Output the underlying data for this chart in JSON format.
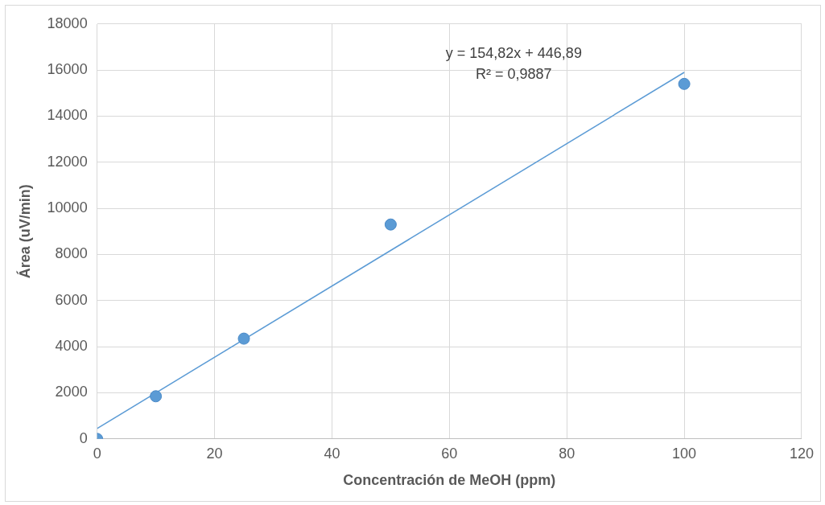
{
  "chart_data": {
    "type": "scatter",
    "xlabel": "Concentración de MeOH (ppm)",
    "ylabel": "Área (uV/min)",
    "x": [
      0,
      10,
      25,
      50,
      100
    ],
    "series": [
      {
        "color": "#5b9bd5",
        "values": [
          0,
          1850,
          4350,
          9300,
          15400
        ],
        "marker": "circle"
      },
      {
        "type": "line",
        "color": "#5b9bd5",
        "x": [
          0,
          100
        ],
        "values": [
          450,
          15900
        ],
        "marker": "none",
        "line_style": "solid"
      }
    ],
    "xlim": [
      0,
      120
    ],
    "xticks": [
      0,
      20,
      40,
      60,
      80,
      100,
      120
    ],
    "ylim": [
      0,
      18000
    ],
    "yticks": [
      0,
      2000,
      4000,
      6000,
      8000,
      10000,
      12000,
      14000,
      16000,
      18000
    ],
    "grid": true,
    "legend": false,
    "annotations": [
      "y = 154,82x + 446,89",
      "R² = 0,9887"
    ]
  }
}
